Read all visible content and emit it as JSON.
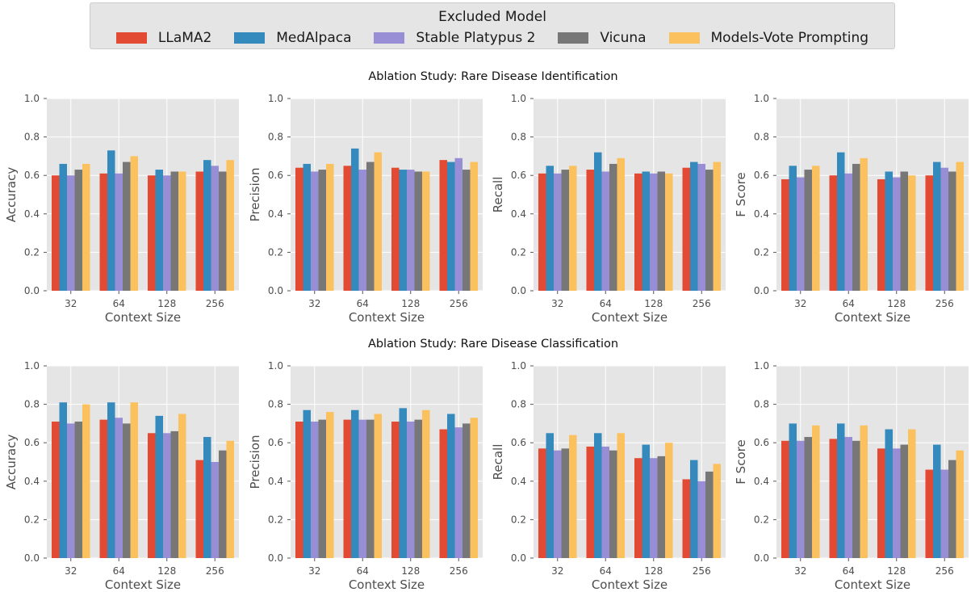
{
  "legend": {
    "title": "Excluded Model",
    "items": [
      {
        "label": "LLaMA2",
        "color": "#E24A33"
      },
      {
        "label": "MedAlpaca",
        "color": "#348ABD"
      },
      {
        "label": "Stable Platypus 2",
        "color": "#988ED5"
      },
      {
        "label": "Vicuna",
        "color": "#777777"
      },
      {
        "label": "Models-Vote Prompting",
        "color": "#FBC15E"
      }
    ]
  },
  "chart_data": [
    {
      "type": "bar",
      "row": 0,
      "col": 0,
      "row_title": "Ablation Study: Rare Disease Identification",
      "xlabel": "Context Size",
      "ylabel": "Accuracy",
      "categories": [
        "32",
        "64",
        "128",
        "256"
      ],
      "ylim": [
        0,
        1
      ],
      "yticks": [
        "0.0",
        "0.2",
        "0.4",
        "0.6",
        "0.8",
        "1.0"
      ],
      "grid": true,
      "series": [
        {
          "name": "LLaMA2",
          "values": [
            0.6,
            0.61,
            0.6,
            0.62
          ]
        },
        {
          "name": "MedAlpaca",
          "values": [
            0.66,
            0.73,
            0.63,
            0.68
          ]
        },
        {
          "name": "Stable Platypus 2",
          "values": [
            0.6,
            0.61,
            0.6,
            0.65
          ]
        },
        {
          "name": "Vicuna",
          "values": [
            0.63,
            0.67,
            0.62,
            0.62
          ]
        },
        {
          "name": "Models-Vote Prompting",
          "values": [
            0.66,
            0.7,
            0.62,
            0.68
          ]
        }
      ]
    },
    {
      "type": "bar",
      "row": 0,
      "col": 1,
      "xlabel": "Context Size",
      "ylabel": "Precision",
      "categories": [
        "32",
        "64",
        "128",
        "256"
      ],
      "ylim": [
        0,
        1
      ],
      "yticks": [
        "0.0",
        "0.2",
        "0.4",
        "0.6",
        "0.8",
        "1.0"
      ],
      "grid": true,
      "series": [
        {
          "name": "LLaMA2",
          "values": [
            0.64,
            0.65,
            0.64,
            0.68
          ]
        },
        {
          "name": "MedAlpaca",
          "values": [
            0.66,
            0.74,
            0.63,
            0.67
          ]
        },
        {
          "name": "Stable Platypus 2",
          "values": [
            0.62,
            0.63,
            0.63,
            0.69
          ]
        },
        {
          "name": "Vicuna",
          "values": [
            0.63,
            0.67,
            0.62,
            0.63
          ]
        },
        {
          "name": "Models-Vote Prompting",
          "values": [
            0.66,
            0.72,
            0.62,
            0.67
          ]
        }
      ]
    },
    {
      "type": "bar",
      "row": 0,
      "col": 2,
      "xlabel": "Context Size",
      "ylabel": "Recall",
      "categories": [
        "32",
        "64",
        "128",
        "256"
      ],
      "ylim": [
        0,
        1
      ],
      "yticks": [
        "0.0",
        "0.2",
        "0.4",
        "0.6",
        "0.8",
        "1.0"
      ],
      "grid": true,
      "series": [
        {
          "name": "LLaMA2",
          "values": [
            0.61,
            0.63,
            0.61,
            0.64
          ]
        },
        {
          "name": "MedAlpaca",
          "values": [
            0.65,
            0.72,
            0.62,
            0.67
          ]
        },
        {
          "name": "Stable Platypus 2",
          "values": [
            0.61,
            0.62,
            0.61,
            0.66
          ]
        },
        {
          "name": "Vicuna",
          "values": [
            0.63,
            0.66,
            0.62,
            0.63
          ]
        },
        {
          "name": "Models-Vote Prompting",
          "values": [
            0.65,
            0.69,
            0.61,
            0.67
          ]
        }
      ]
    },
    {
      "type": "bar",
      "row": 0,
      "col": 3,
      "xlabel": "Context Size",
      "ylabel": "F Score",
      "categories": [
        "32",
        "64",
        "128",
        "256"
      ],
      "ylim": [
        0,
        1
      ],
      "yticks": [
        "0.0",
        "0.2",
        "0.4",
        "0.6",
        "0.8",
        "1.0"
      ],
      "grid": true,
      "series": [
        {
          "name": "LLaMA2",
          "values": [
            0.58,
            0.6,
            0.58,
            0.6
          ]
        },
        {
          "name": "MedAlpaca",
          "values": [
            0.65,
            0.72,
            0.62,
            0.67
          ]
        },
        {
          "name": "Stable Platypus 2",
          "values": [
            0.59,
            0.61,
            0.59,
            0.64
          ]
        },
        {
          "name": "Vicuna",
          "values": [
            0.63,
            0.66,
            0.62,
            0.62
          ]
        },
        {
          "name": "Models-Vote Prompting",
          "values": [
            0.65,
            0.69,
            0.6,
            0.67
          ]
        }
      ]
    },
    {
      "type": "bar",
      "row": 1,
      "col": 0,
      "row_title": "Ablation Study: Rare Disease Classification",
      "xlabel": "Context Size",
      "ylabel": "Accuracy",
      "categories": [
        "32",
        "64",
        "128",
        "256"
      ],
      "ylim": [
        0,
        1
      ],
      "yticks": [
        "0.0",
        "0.2",
        "0.4",
        "0.6",
        "0.8",
        "1.0"
      ],
      "grid": true,
      "series": [
        {
          "name": "LLaMA2",
          "values": [
            0.71,
            0.72,
            0.65,
            0.51
          ]
        },
        {
          "name": "MedAlpaca",
          "values": [
            0.81,
            0.81,
            0.74,
            0.63
          ]
        },
        {
          "name": "Stable Platypus 2",
          "values": [
            0.7,
            0.73,
            0.65,
            0.5
          ]
        },
        {
          "name": "Vicuna",
          "values": [
            0.71,
            0.7,
            0.66,
            0.56
          ]
        },
        {
          "name": "Models-Vote Prompting",
          "values": [
            0.8,
            0.81,
            0.75,
            0.61
          ]
        }
      ]
    },
    {
      "type": "bar",
      "row": 1,
      "col": 1,
      "xlabel": "Context Size",
      "ylabel": "Precision",
      "categories": [
        "32",
        "64",
        "128",
        "256"
      ],
      "ylim": [
        0,
        1
      ],
      "yticks": [
        "0.0",
        "0.2",
        "0.4",
        "0.6",
        "0.8",
        "1.0"
      ],
      "grid": true,
      "series": [
        {
          "name": "LLaMA2",
          "values": [
            0.71,
            0.72,
            0.71,
            0.67
          ]
        },
        {
          "name": "MedAlpaca",
          "values": [
            0.77,
            0.77,
            0.78,
            0.75
          ]
        },
        {
          "name": "Stable Platypus 2",
          "values": [
            0.71,
            0.72,
            0.71,
            0.68
          ]
        },
        {
          "name": "Vicuna",
          "values": [
            0.72,
            0.72,
            0.72,
            0.7
          ]
        },
        {
          "name": "Models-Vote Prompting",
          "values": [
            0.76,
            0.75,
            0.77,
            0.73
          ]
        }
      ]
    },
    {
      "type": "bar",
      "row": 1,
      "col": 2,
      "xlabel": "Context Size",
      "ylabel": "Recall",
      "categories": [
        "32",
        "64",
        "128",
        "256"
      ],
      "ylim": [
        0,
        1
      ],
      "yticks": [
        "0.0",
        "0.2",
        "0.4",
        "0.6",
        "0.8",
        "1.0"
      ],
      "grid": true,
      "series": [
        {
          "name": "LLaMA2",
          "values": [
            0.57,
            0.58,
            0.52,
            0.41
          ]
        },
        {
          "name": "MedAlpaca",
          "values": [
            0.65,
            0.65,
            0.59,
            0.51
          ]
        },
        {
          "name": "Stable Platypus 2",
          "values": [
            0.56,
            0.58,
            0.52,
            0.4
          ]
        },
        {
          "name": "Vicuna",
          "values": [
            0.57,
            0.56,
            0.53,
            0.45
          ]
        },
        {
          "name": "Models-Vote Prompting",
          "values": [
            0.64,
            0.65,
            0.6,
            0.49
          ]
        }
      ]
    },
    {
      "type": "bar",
      "row": 1,
      "col": 3,
      "xlabel": "Context Size",
      "ylabel": "F Score",
      "categories": [
        "32",
        "64",
        "128",
        "256"
      ],
      "ylim": [
        0,
        1
      ],
      "yticks": [
        "0.0",
        "0.2",
        "0.4",
        "0.6",
        "0.8",
        "1.0"
      ],
      "grid": true,
      "series": [
        {
          "name": "LLaMA2",
          "values": [
            0.61,
            0.62,
            0.57,
            0.46
          ]
        },
        {
          "name": "MedAlpaca",
          "values": [
            0.7,
            0.7,
            0.67,
            0.59
          ]
        },
        {
          "name": "Stable Platypus 2",
          "values": [
            0.61,
            0.63,
            0.57,
            0.46
          ]
        },
        {
          "name": "Vicuna",
          "values": [
            0.63,
            0.61,
            0.59,
            0.51
          ]
        },
        {
          "name": "Models-Vote Prompting",
          "values": [
            0.69,
            0.69,
            0.67,
            0.56
          ]
        }
      ]
    }
  ]
}
